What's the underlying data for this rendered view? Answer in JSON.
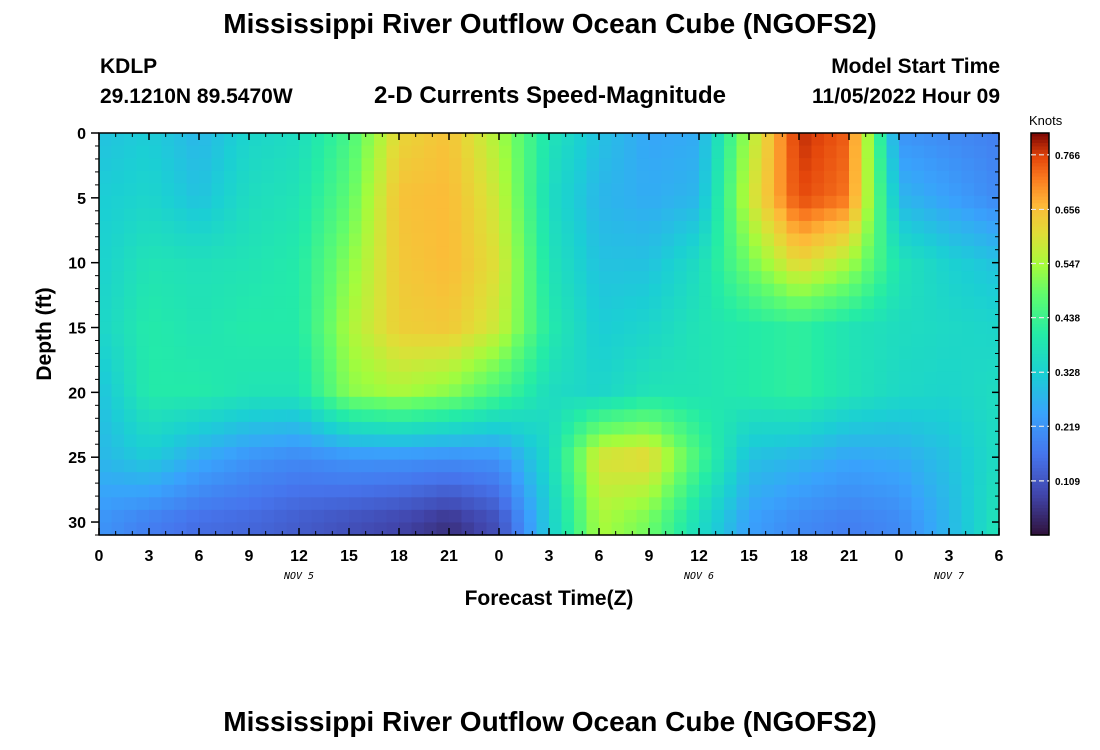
{
  "header": {
    "title": "Mississippi River Outflow Ocean Cube (NGOFS2)",
    "station_id": "KDLP",
    "coordinates": "29.1210N  89.5470W",
    "subtitle": "2-D Currents Speed-Magnitude",
    "model_start_label": "Model Start Time",
    "model_start_value": "11/05/2022 Hour 09"
  },
  "footer": {
    "title": "Mississippi River Outflow Ocean Cube (NGOFS2)"
  },
  "chart_data": {
    "type": "heatmap",
    "xlabel": "Forecast Time(Z)",
    "ylabel": "Depth (ft)",
    "x_range_hours": [
      0,
      54
    ],
    "y_range_ft": [
      0,
      31
    ],
    "y_inverted": true,
    "x_tick_labels": [
      "0",
      "3",
      "6",
      "9",
      "12",
      "15",
      "18",
      "21",
      "0",
      "3",
      "6",
      "9",
      "12",
      "15",
      "18",
      "21",
      "0",
      "3",
      "6"
    ],
    "y_tick_labels": [
      "0",
      "5",
      "10",
      "15",
      "20",
      "25",
      "30"
    ],
    "date_labels": [
      {
        "hour": 12,
        "text": "NOV 5"
      },
      {
        "hour": 36,
        "text": "NOV 6"
      },
      {
        "hour": 51,
        "text": "NOV 7"
      }
    ],
    "colorbar": {
      "unit": "Knots",
      "min": 0.0,
      "max": 0.81,
      "tick_labels": [
        "0.766",
        "0.656",
        "0.547",
        "0.438",
        "0.328",
        "0.219",
        "0.109"
      ],
      "palette": "turbo"
    },
    "columns_hours": [
      0,
      3,
      6,
      9,
      12,
      15,
      18,
      21,
      24,
      27,
      30,
      33,
      36,
      39,
      42,
      45,
      48,
      51,
      54
    ],
    "depths_ft": [
      0,
      5,
      10,
      15,
      20,
      25,
      30
    ],
    "speeds_knots": [
      [
        0.3,
        0.32,
        0.28,
        0.34,
        0.36,
        0.45,
        0.62,
        0.65,
        0.55,
        0.38,
        0.3,
        0.25,
        0.26,
        0.55,
        0.78,
        0.74,
        0.22,
        0.2,
        0.18
      ],
      [
        0.32,
        0.34,
        0.3,
        0.36,
        0.38,
        0.48,
        0.65,
        0.66,
        0.58,
        0.36,
        0.28,
        0.26,
        0.28,
        0.58,
        0.76,
        0.72,
        0.28,
        0.24,
        0.2
      ],
      [
        0.33,
        0.38,
        0.37,
        0.38,
        0.4,
        0.52,
        0.64,
        0.66,
        0.6,
        0.38,
        0.3,
        0.3,
        0.36,
        0.5,
        0.62,
        0.55,
        0.38,
        0.33,
        0.3
      ],
      [
        0.34,
        0.4,
        0.38,
        0.4,
        0.4,
        0.55,
        0.63,
        0.64,
        0.58,
        0.4,
        0.32,
        0.34,
        0.38,
        0.4,
        0.42,
        0.38,
        0.36,
        0.35,
        0.34
      ],
      [
        0.3,
        0.4,
        0.4,
        0.38,
        0.38,
        0.52,
        0.55,
        0.52,
        0.45,
        0.36,
        0.34,
        0.38,
        0.38,
        0.4,
        0.42,
        0.38,
        0.35,
        0.34,
        0.36
      ],
      [
        0.28,
        0.32,
        0.26,
        0.22,
        0.2,
        0.22,
        0.22,
        0.21,
        0.22,
        0.35,
        0.6,
        0.62,
        0.45,
        0.3,
        0.28,
        0.25,
        0.26,
        0.3,
        0.36
      ],
      [
        0.22,
        0.18,
        0.15,
        0.14,
        0.12,
        0.1,
        0.08,
        0.05,
        0.1,
        0.32,
        0.55,
        0.5,
        0.36,
        0.24,
        0.2,
        0.18,
        0.2,
        0.28,
        0.38
      ]
    ]
  }
}
